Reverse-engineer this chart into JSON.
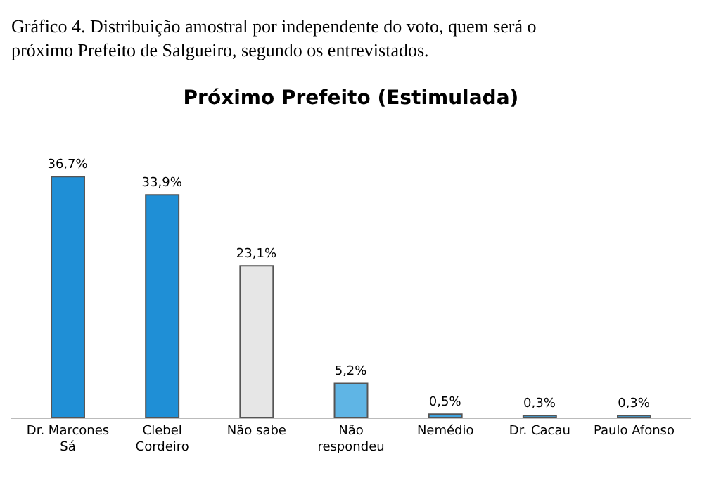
{
  "chart_data": {
    "type": "bar",
    "title": "Próximo Prefeito (Estimulada)",
    "annotations": [
      "Gráfico 4. Distribuição amostral por independente do voto, quem será o próximo Prefeito de Salgueiro, segundo os entrevistados."
    ],
    "categories": [
      "Dr. Marcones Sá",
      "Clebel Cordeiro",
      "Não sabe",
      "Não respondeu",
      "Nemédio",
      "Dr. Cacau",
      "Paulo Afonso"
    ],
    "values": [
      36.7,
      33.9,
      23.1,
      5.2,
      0.5,
      0.3,
      0.3
    ],
    "value_labels": [
      "36,7%",
      "33,9%",
      "23,1%",
      "5,2%",
      "0,5%",
      "0,3%",
      "0,3%"
    ],
    "colors": [
      "#1f8fd6",
      "#1f8fd6",
      "#e6e6e6",
      "#5fb5e5",
      "#3fa3df",
      "#3fa3df",
      "#3fa3df"
    ]
  }
}
